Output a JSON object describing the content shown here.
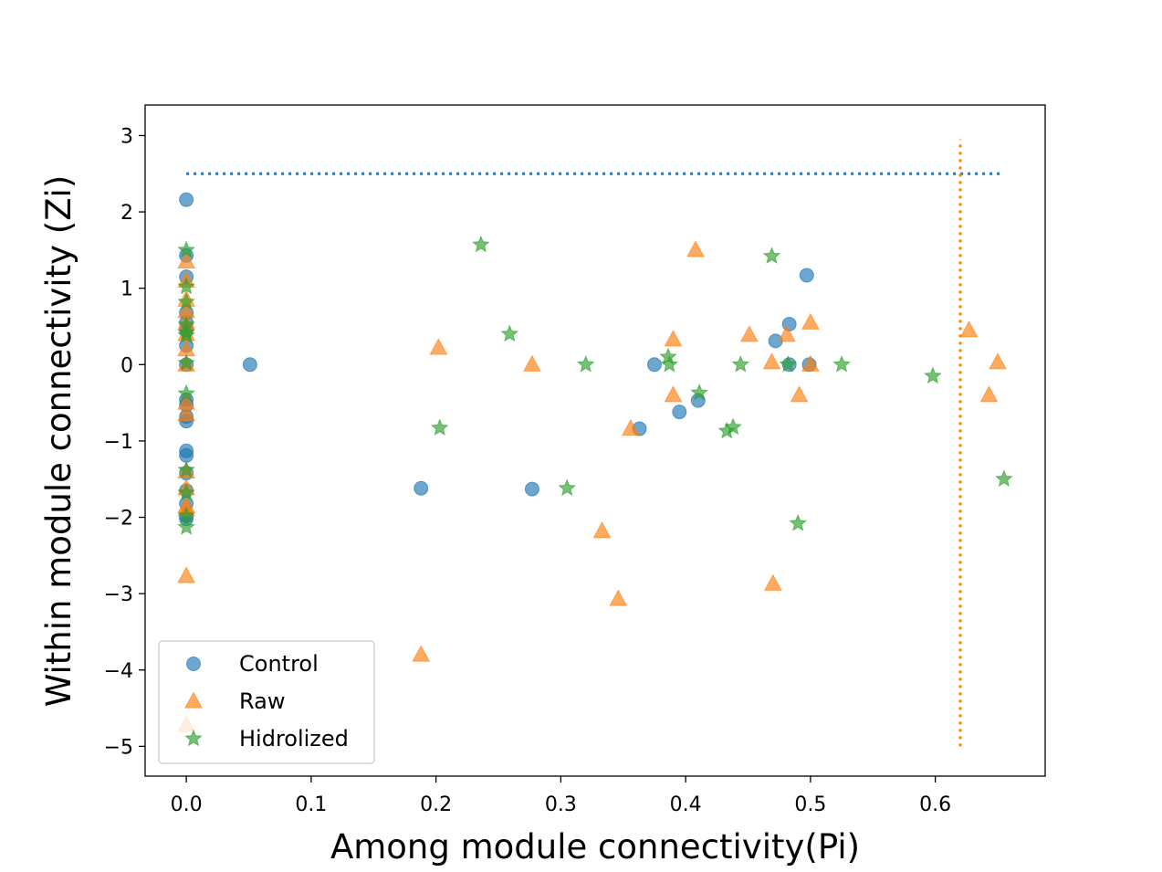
{
  "chart_data": {
    "type": "scatter",
    "title": "",
    "xlabel": "Among module connectivity(Pi)",
    "ylabel": "Within module connectivity (Zi)",
    "xlim": [
      -0.033,
      0.688
    ],
    "ylim": [
      -5.39,
      3.4
    ],
    "xticks": [
      0.0,
      0.1,
      0.2,
      0.3,
      0.4,
      0.5,
      0.6
    ],
    "xtick_labels": [
      "0.0",
      "0.1",
      "0.2",
      "0.3",
      "0.4",
      "0.5",
      "0.6"
    ],
    "yticks": [
      3,
      2,
      1,
      0,
      -1,
      -2,
      -3,
      -4,
      -5
    ],
    "ytick_labels": [
      "3",
      "2",
      "1",
      "0",
      "−1",
      "−2",
      "−3",
      "−4",
      "−5"
    ],
    "legend_position": "lower-left",
    "grid": false,
    "series": [
      {
        "name": "Control",
        "marker": "circle",
        "color": "#1f77b4",
        "points": [
          [
            0.0,
            2.16
          ],
          [
            0.0,
            1.43
          ],
          [
            0.0,
            1.15
          ],
          [
            0.0,
            0.68
          ],
          [
            0.0,
            0.55
          ],
          [
            0.0,
            0.45
          ],
          [
            0.0,
            0.25
          ],
          [
            0.0,
            0.0
          ],
          [
            0.0,
            -0.46
          ],
          [
            0.0,
            -0.53
          ],
          [
            0.0,
            -0.68
          ],
          [
            0.0,
            -0.74
          ],
          [
            0.0,
            -1.13
          ],
          [
            0.0,
            -1.19
          ],
          [
            0.0,
            -1.42
          ],
          [
            0.0,
            -1.65
          ],
          [
            0.0,
            -1.82
          ],
          [
            0.0,
            -1.98
          ],
          [
            0.0,
            -2.02
          ],
          [
            0.051,
            0.0
          ],
          [
            0.188,
            -1.62
          ],
          [
            0.277,
            -1.63
          ],
          [
            0.363,
            -0.84
          ],
          [
            0.375,
            0.0
          ],
          [
            0.395,
            -0.62
          ],
          [
            0.41,
            -0.47
          ],
          [
            0.472,
            0.31
          ],
          [
            0.483,
            0.53
          ],
          [
            0.483,
            0.0
          ],
          [
            0.497,
            1.17
          ],
          [
            0.499,
            0.0
          ]
        ]
      },
      {
        "name": "Raw",
        "marker": "triangle",
        "color": "#ff7f0e",
        "points": [
          [
            0.0,
            1.35
          ],
          [
            0.0,
            1.1
          ],
          [
            0.0,
            0.85
          ],
          [
            0.0,
            0.7
          ],
          [
            0.0,
            0.55
          ],
          [
            0.0,
            0.4
          ],
          [
            0.0,
            0.2
          ],
          [
            0.0,
            0.0
          ],
          [
            0.0,
            -0.5
          ],
          [
            0.0,
            -0.65
          ],
          [
            0.0,
            -1.4
          ],
          [
            0.0,
            -1.62
          ],
          [
            0.0,
            -1.85
          ],
          [
            0.0,
            -1.9
          ],
          [
            0.0,
            -2.77
          ],
          [
            0.0,
            -4.72
          ],
          [
            0.188,
            -3.8
          ],
          [
            0.202,
            0.22
          ],
          [
            0.277,
            0.0
          ],
          [
            0.333,
            -2.18
          ],
          [
            0.346,
            -3.07
          ],
          [
            0.356,
            -0.84
          ],
          [
            0.39,
            0.33
          ],
          [
            0.39,
            -0.4
          ],
          [
            0.408,
            1.5
          ],
          [
            0.451,
            0.39
          ],
          [
            0.469,
            0.03
          ],
          [
            0.47,
            -2.87
          ],
          [
            0.481,
            0.39
          ],
          [
            0.491,
            -0.4
          ],
          [
            0.5,
            0.55
          ],
          [
            0.5,
            0.0
          ],
          [
            0.627,
            0.45
          ],
          [
            0.643,
            -0.4
          ],
          [
            0.65,
            0.03
          ]
        ]
      },
      {
        "name": "Hidrolized",
        "marker": "star",
        "color": "#2ca02c",
        "points": [
          [
            0.0,
            1.5
          ],
          [
            0.0,
            1.02
          ],
          [
            0.0,
            0.82
          ],
          [
            0.0,
            0.52
          ],
          [
            0.0,
            0.42
          ],
          [
            0.0,
            0.38
          ],
          [
            0.0,
            0.02
          ],
          [
            0.0,
            -0.38
          ],
          [
            0.0,
            -1.38
          ],
          [
            0.0,
            -1.68
          ],
          [
            0.0,
            -1.98
          ],
          [
            0.0,
            -2.13
          ],
          [
            0.203,
            -0.83
          ],
          [
            0.236,
            1.57
          ],
          [
            0.259,
            0.4
          ],
          [
            0.305,
            -1.62
          ],
          [
            0.32,
            0.0
          ],
          [
            0.386,
            0.1
          ],
          [
            0.387,
            0.0
          ],
          [
            0.411,
            -0.37
          ],
          [
            0.433,
            -0.87
          ],
          [
            0.438,
            -0.82
          ],
          [
            0.444,
            0.0
          ],
          [
            0.469,
            1.42
          ],
          [
            0.482,
            0.0
          ],
          [
            0.49,
            -2.08
          ],
          [
            0.525,
            0.0
          ],
          [
            0.598,
            -0.15
          ],
          [
            0.655,
            -1.5
          ]
        ]
      }
    ],
    "reference_lines": [
      {
        "orientation": "horizontal",
        "y": 2.5,
        "x_range": [
          0.0,
          0.655
        ],
        "color": "#1f77b4",
        "style": "dotted"
      },
      {
        "orientation": "vertical",
        "x": 0.62,
        "y_range": [
          -5.0,
          2.95
        ],
        "color": "#ff7f0e",
        "style": "dotted"
      }
    ]
  }
}
